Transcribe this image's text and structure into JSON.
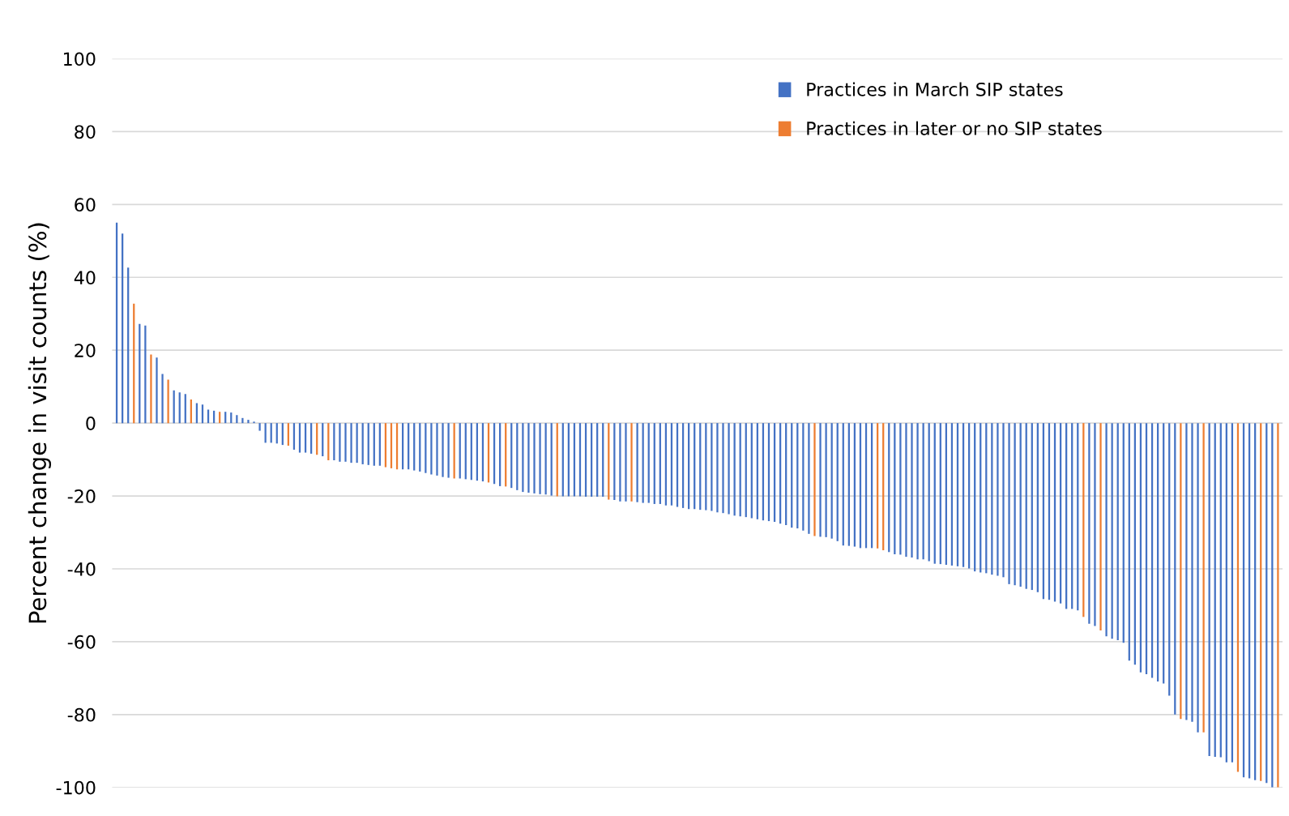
{
  "chart_data": {
    "type": "bar",
    "ylabel": "Percent change in visit counts (%)",
    "categories": [
      null,
      null,
      null,
      null,
      null,
      null,
      null,
      null,
      null,
      null,
      null,
      null,
      null,
      null,
      null,
      null,
      null,
      null,
      null,
      null,
      null,
      null,
      null,
      null,
      null,
      null,
      null,
      null,
      null,
      null,
      null,
      null,
      null,
      null,
      null,
      null,
      null,
      null,
      null,
      null,
      null,
      null,
      null,
      null,
      null,
      null,
      null,
      null,
      null,
      null,
      null,
      null,
      null,
      null,
      null,
      null,
      null,
      null,
      null,
      null,
      null,
      null,
      null,
      null,
      null,
      null,
      null,
      null,
      null,
      null,
      null,
      null,
      null,
      null,
      null,
      null,
      null,
      null,
      null,
      null,
      null,
      null,
      null,
      null,
      null,
      null,
      null,
      null,
      null,
      null,
      null,
      null,
      null,
      null,
      null,
      null,
      null,
      null,
      null,
      null,
      null,
      null,
      null,
      null,
      null,
      null,
      null,
      null,
      null,
      null,
      null,
      null,
      null,
      null,
      null,
      null,
      null,
      null,
      null,
      null,
      null,
      null,
      null,
      null,
      null,
      null,
      null,
      null,
      null,
      null,
      null,
      null,
      null,
      null,
      null,
      null,
      null,
      null,
      null,
      null,
      null,
      null,
      null,
      null,
      null,
      null,
      null,
      null,
      null,
      null,
      null,
      null,
      null,
      null,
      null,
      null,
      null,
      null,
      null,
      null,
      null,
      null,
      null,
      null,
      null,
      null,
      null,
      null,
      null,
      null,
      null,
      null,
      null,
      null,
      null,
      null,
      null,
      null,
      null,
      null,
      null,
      null,
      null,
      null,
      null,
      null,
      null,
      null,
      null,
      null,
      null,
      null,
      null,
      null,
      null,
      null,
      null,
      null,
      null,
      null,
      null,
      null,
      null,
      null
    ],
    "series": [
      {
        "name": "Practices in March SIP states",
        "color": "#4472c4",
        "values": [
          55,
          52,
          42.7,
          null,
          27.2,
          26.8,
          null,
          18,
          13.5,
          null,
          9,
          8.4,
          8,
          null,
          5.5,
          5.1,
          3.7,
          3.4,
          null,
          3.1,
          2.9,
          2.2,
          1.4,
          0.9,
          0.4,
          -2.1,
          -5.4,
          -5.4,
          -5.6,
          -6,
          null,
          -7.3,
          -8.1,
          -8.1,
          -8.4,
          null,
          -9.1,
          null,
          -10.2,
          -10.6,
          -10.6,
          -10.9,
          -10.9,
          -11.3,
          -11.5,
          -11.7,
          -11.7,
          null,
          null,
          null,
          -12.7,
          -12.7,
          -13,
          -13.3,
          -13.7,
          -14.1,
          -14.4,
          -14.8,
          -15,
          null,
          -15.2,
          -15.4,
          -15.6,
          -15.8,
          -16,
          null,
          -16.7,
          -17.3,
          null,
          -17.8,
          -18.4,
          -18.9,
          -19.1,
          -19.3,
          -19.5,
          -19.6,
          -19.9,
          null,
          -20.1,
          -20.1,
          -20.1,
          -20.1,
          -20.2,
          -20.2,
          -20.2,
          -20.2,
          null,
          -21.1,
          -21.5,
          -21.5,
          null,
          -21.7,
          -21.9,
          -21.9,
          -22.2,
          -22.2,
          -22.6,
          -22.6,
          -23,
          -23.3,
          -23.6,
          -23.6,
          -23.8,
          -23.9,
          -24.1,
          -24.5,
          -24.7,
          -25,
          -25.4,
          -25.6,
          -25.8,
          -26.1,
          -26.4,
          -26.7,
          -26.9,
          -27.1,
          -27.6,
          -28,
          -28.7,
          -28.9,
          -29.5,
          -30.4,
          null,
          -31.2,
          -31.3,
          -31.7,
          -32.4,
          -33.6,
          -33.7,
          -33.9,
          -34.3,
          -34.3,
          -34.3,
          null,
          null,
          -35.4,
          -36,
          -36.1,
          -36.7,
          -36.9,
          -37.4,
          -37.4,
          -37.9,
          -38.6,
          -38.7,
          -38.9,
          -39.1,
          -39.3,
          -39.5,
          -39.9,
          -40.7,
          -41,
          -41.2,
          -41.6,
          -41.9,
          -42.3,
          -44.2,
          -44.5,
          -44.9,
          -45.5,
          -45.8,
          -46.4,
          -48.3,
          -48.5,
          -49,
          -49.5,
          -51,
          -51,
          -51.4,
          null,
          -55.1,
          -55.7,
          null,
          -58.5,
          -59.2,
          -59.6,
          -60.3,
          -65.2,
          -66.3,
          -68.4,
          -68.9,
          -69.9,
          -70.9,
          -71.5,
          -74.8,
          -80,
          null,
          -81.5,
          -82,
          -84.9,
          null,
          -91.4,
          -91.6,
          -91.7,
          -93.1,
          -93.1,
          null,
          -97.2,
          -97.5,
          -98,
          null,
          -98.8,
          -100,
          null
        ]
      },
      {
        "name": "Practices in later or no SIP states",
        "color": "#ed7d31",
        "values": [
          null,
          null,
          null,
          32.8,
          null,
          null,
          18.8,
          null,
          null,
          11.9,
          null,
          null,
          null,
          6.5,
          null,
          null,
          null,
          null,
          3.1,
          null,
          null,
          null,
          null,
          null,
          null,
          null,
          null,
          null,
          null,
          null,
          -6.2,
          null,
          null,
          null,
          null,
          -8.7,
          null,
          -10.2,
          null,
          null,
          null,
          null,
          null,
          null,
          null,
          null,
          null,
          -12.1,
          -12.4,
          -12.7,
          null,
          null,
          null,
          null,
          null,
          null,
          null,
          null,
          null,
          -15.2,
          null,
          null,
          null,
          null,
          null,
          -16.3,
          null,
          null,
          -17.4,
          null,
          null,
          null,
          null,
          null,
          null,
          null,
          null,
          -20.1,
          null,
          null,
          null,
          null,
          null,
          null,
          null,
          null,
          -21,
          null,
          null,
          null,
          -21.5,
          null,
          null,
          null,
          null,
          null,
          null,
          null,
          null,
          null,
          null,
          null,
          null,
          null,
          null,
          null,
          null,
          null,
          null,
          null,
          null,
          null,
          null,
          null,
          null,
          null,
          null,
          null,
          null,
          null,
          null,
          null,
          -31,
          null,
          null,
          null,
          null,
          null,
          null,
          null,
          null,
          null,
          null,
          -34.4,
          -34.9,
          null,
          null,
          null,
          null,
          null,
          null,
          null,
          null,
          null,
          null,
          null,
          null,
          null,
          null,
          null,
          null,
          null,
          null,
          null,
          null,
          null,
          null,
          null,
          null,
          null,
          null,
          null,
          null,
          null,
          null,
          null,
          null,
          null,
          null,
          -53.2,
          null,
          null,
          -56.9,
          null,
          null,
          null,
          null,
          null,
          null,
          null,
          null,
          null,
          null,
          null,
          null,
          null,
          -81.2,
          null,
          null,
          null,
          -84.9,
          null,
          null,
          null,
          null,
          null,
          -95.7,
          null,
          null,
          null,
          -98.2,
          null,
          null,
          -100
        ]
      }
    ],
    "ylim": [
      -100,
      100
    ],
    "yticks": [
      -100,
      -80,
      -60,
      -40,
      -20,
      0,
      20,
      40,
      60,
      80,
      100
    ],
    "grid": "y",
    "legend": "top right",
    "tick_labels": "y"
  }
}
